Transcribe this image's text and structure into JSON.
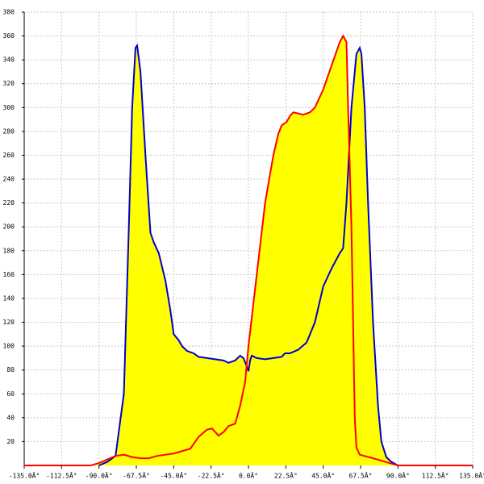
{
  "chart_data": {
    "type": "area",
    "fill": "#ffff00",
    "grid": true,
    "xlim": [
      -135,
      135
    ],
    "ylim": [
      0,
      380
    ],
    "xticks": [
      {
        "value": -135,
        "label": "-135.0Â°"
      },
      {
        "value": -112.5,
        "label": "-112.5Â°"
      },
      {
        "value": -90,
        "label": "-90.0Â°"
      },
      {
        "value": -67.5,
        "label": "-67.5Â°"
      },
      {
        "value": -45,
        "label": "-45.0Â°"
      },
      {
        "value": -22.5,
        "label": "-22.5Â°"
      },
      {
        "value": 0,
        "label": "0.0Â°"
      },
      {
        "value": 22.5,
        "label": "22.5Â°"
      },
      {
        "value": 45,
        "label": "45.0Â°"
      },
      {
        "value": 67.5,
        "label": "67.5Â°"
      },
      {
        "value": 90,
        "label": "90.0Â°"
      },
      {
        "value": 112.5,
        "label": "112.5Â°"
      },
      {
        "value": 135,
        "label": "135.0Â°"
      }
    ],
    "yticks": [
      20,
      40,
      60,
      80,
      100,
      120,
      140,
      160,
      180,
      200,
      220,
      240,
      260,
      280,
      300,
      320,
      340,
      360,
      380
    ],
    "series": [
      {
        "color": "#0000cc",
        "x": [
          -90,
          -85,
          -80,
          -75,
          -72,
          -70,
          -68,
          -67,
          -65,
          -62,
          -59,
          -57,
          -54,
          -50,
          -47,
          -45,
          -42,
          -40,
          -37,
          -33,
          -30,
          -25,
          -20,
          -15,
          -12,
          -8,
          -5,
          -3,
          -1,
          0,
          1,
          2,
          5,
          10,
          15,
          20,
          22,
          25,
          30,
          35,
          40,
          45,
          50,
          55,
          57,
          59,
          62,
          65,
          67,
          68,
          70,
          72,
          75,
          78,
          80,
          83,
          86,
          90
        ],
        "values": [
          0,
          3,
          8,
          60,
          200,
          300,
          350,
          352,
          330,
          260,
          195,
          187,
          178,
          155,
          130,
          110,
          105,
          100,
          96,
          94,
          91,
          90,
          89,
          88,
          86,
          88,
          92,
          90,
          83,
          79,
          88,
          92,
          90,
          89,
          90,
          91,
          94,
          94,
          97,
          103,
          120,
          150,
          165,
          178,
          182,
          220,
          300,
          345,
          350,
          345,
          300,
          220,
          120,
          50,
          20,
          7,
          3,
          0
        ]
      },
      {
        "color": "#ff0000",
        "x": [
          -135,
          -95,
          -90,
          -85,
          -80,
          -75,
          -70,
          -65,
          -60,
          -55,
          -50,
          -45,
          -40,
          -35,
          -30,
          -25,
          -22,
          -20,
          -18,
          -15,
          -12,
          -8,
          -5,
          -2,
          0,
          5,
          10,
          15,
          18,
          20,
          23,
          25,
          27,
          30,
          33,
          37,
          40,
          45,
          50,
          55,
          57,
          59,
          60,
          62,
          63,
          64,
          65,
          67,
          75,
          85,
          90,
          135
        ],
        "values": [
          0,
          0,
          2,
          5,
          8,
          9,
          7,
          6,
          6,
          8,
          9,
          10,
          12,
          14,
          24,
          30,
          31,
          28,
          25,
          28,
          33,
          35,
          50,
          70,
          100,
          160,
          220,
          260,
          278,
          285,
          288,
          293,
          296,
          295,
          294,
          296,
          300,
          315,
          335,
          355,
          360,
          355,
          300,
          200,
          120,
          40,
          15,
          9,
          6,
          2,
          0,
          0
        ]
      }
    ]
  }
}
